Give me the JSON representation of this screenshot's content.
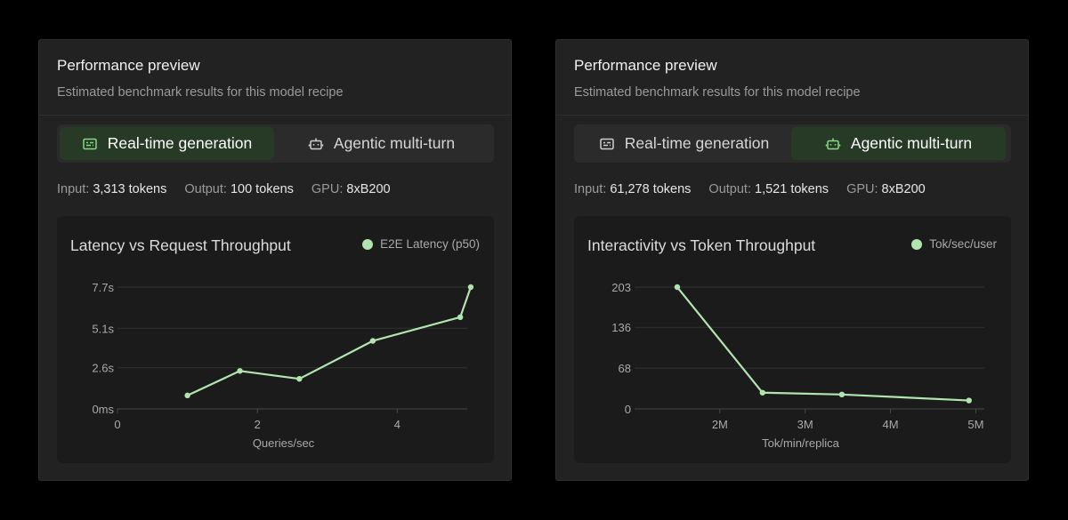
{
  "colors": {
    "accent": "#b2e4b0",
    "active_tab_bg": "#263a26",
    "card_bg": "#222222",
    "chart_bg": "#1b1b1b"
  },
  "cards": [
    {
      "title": "Performance preview",
      "subtitle": "Estimated benchmark results for this model recipe",
      "tabs": [
        {
          "label": "Real-time generation",
          "icon": "terminal-icon",
          "active": true
        },
        {
          "label": "Agentic multi-turn",
          "icon": "robot-icon",
          "active": false
        }
      ],
      "meta": {
        "input_label": "Input:",
        "input_value": "3,313 tokens",
        "output_label": "Output:",
        "output_value": "100 tokens",
        "gpu_label": "GPU:",
        "gpu_value": "8xB200"
      },
      "legend": "E2E Latency (p50)"
    },
    {
      "title": "Performance preview",
      "subtitle": "Estimated benchmark results for this model recipe",
      "tabs": [
        {
          "label": "Real-time generation",
          "icon": "terminal-icon",
          "active": false
        },
        {
          "label": "Agentic multi-turn",
          "icon": "robot-icon",
          "active": true
        }
      ],
      "meta": {
        "input_label": "Input:",
        "input_value": "61,278 tokens",
        "output_label": "Output:",
        "output_value": "1,521 tokens",
        "gpu_label": "GPU:",
        "gpu_value": "8xB200"
      },
      "legend": "Tok/sec/user"
    }
  ],
  "chart_data": [
    {
      "type": "line",
      "title": "Latency vs Request Throughput",
      "xlabel": "Queries/sec",
      "ylabel": "",
      "xlim": [
        0,
        5
      ],
      "ylim": [
        0,
        7.7
      ],
      "x_ticks": [
        0,
        2,
        4
      ],
      "x_tick_labels": [
        "0",
        "2",
        "4"
      ],
      "y_ticks": [
        0,
        2.6,
        5.1,
        7.7
      ],
      "y_tick_labels": [
        "0ms",
        "2.6s",
        "5.1s",
        "7.7s"
      ],
      "grid": true,
      "legend_position": "top-right",
      "series": [
        {
          "name": "E2E Latency (p50)",
          "x": [
            1.0,
            1.75,
            2.6,
            3.65,
            4.9,
            5.05
          ],
          "y": [
            0.85,
            2.4,
            1.9,
            4.3,
            5.8,
            7.7
          ]
        }
      ]
    },
    {
      "type": "line",
      "title": "Interactivity vs Token Throughput",
      "xlabel": "Tok/min/replica",
      "ylabel": "",
      "xlim": [
        1.0,
        5.1
      ],
      "ylim": [
        0,
        203
      ],
      "x_ticks": [
        2,
        3,
        4,
        5
      ],
      "x_tick_labels": [
        "2M",
        "3M",
        "4M",
        "5M"
      ],
      "y_ticks": [
        0,
        68,
        136,
        203
      ],
      "y_tick_labels": [
        "0",
        "68",
        "136",
        "203"
      ],
      "grid": true,
      "legend_position": "top-right",
      "series": [
        {
          "name": "Tok/sec/user",
          "x": [
            1.5,
            2.5,
            3.43,
            4.92
          ],
          "y": [
            203,
            27,
            24,
            14
          ]
        }
      ]
    }
  ]
}
